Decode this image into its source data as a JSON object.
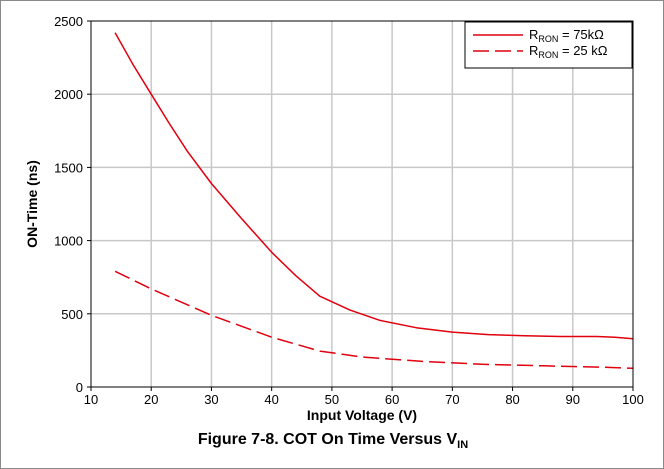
{
  "chart_data": {
    "type": "line",
    "xlabel": "Input Voltage (V)",
    "ylabel": "ON-Time (ns)",
    "xlim": [
      10,
      100
    ],
    "ylim": [
      0,
      2500
    ],
    "x_ticks": [
      "10",
      "20",
      "30",
      "40",
      "50",
      "60",
      "70",
      "80",
      "90",
      "100"
    ],
    "y_ticks": [
      "0",
      "500",
      "1000",
      "1500",
      "2000",
      "2500"
    ],
    "grid": true,
    "legend_position": "top-right",
    "series": [
      {
        "name": "R_RON = 75kΩ",
        "legend": {
          "main": "R",
          "sub": "RON",
          "rest": " = 75kΩ"
        },
        "color": "#e0000e",
        "style": "solid",
        "x": [
          14,
          17,
          20,
          23,
          26,
          30,
          35,
          40,
          44,
          48,
          53,
          58,
          64,
          70,
          76,
          82,
          88,
          94,
          97,
          100
        ],
        "y": [
          2420,
          2200,
          2000,
          1800,
          1610,
          1390,
          1150,
          920,
          760,
          620,
          525,
          455,
          405,
          375,
          358,
          350,
          345,
          345,
          340,
          330
        ]
      },
      {
        "name": "R_RON = 25 kΩ",
        "legend": {
          "main": "R",
          "sub": "RON",
          "rest": " = 25 kΩ"
        },
        "color": "#e0000e",
        "style": "dashed",
        "x": [
          14,
          20,
          30,
          40,
          48,
          55,
          65,
          75,
          85,
          95,
          100
        ],
        "y": [
          790,
          670,
          490,
          340,
          245,
          205,
          175,
          155,
          145,
          135,
          128
        ]
      }
    ]
  },
  "caption": {
    "text": "Figure 7-8. COT On Time Versus V",
    "sub": "IN"
  }
}
